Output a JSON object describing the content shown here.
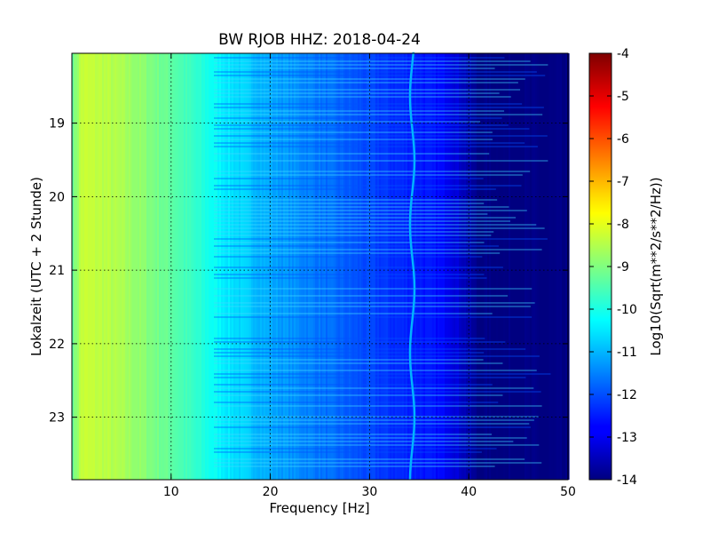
{
  "chart_data": {
    "type": "heatmap",
    "title": "BW RJOB HHZ: 2018-04-24",
    "xlabel": "Frequency [Hz]",
    "ylabel": "Lokalzeit (UTC + 2 Stunde)",
    "xlim": [
      0,
      50
    ],
    "ylim": [
      18.05,
      23.85
    ],
    "x_ticks": [
      "10",
      "20",
      "30",
      "40",
      "50"
    ],
    "y_ticks": [
      "19",
      "20",
      "21",
      "22",
      "23"
    ],
    "grid": true,
    "colorbar": {
      "label": "Log10(Sqrt(m**2/s**2/Hz))",
      "min": -14,
      "max": -4,
      "ticks": [
        "-4",
        "-5",
        "-6",
        "-7",
        "-8",
        "-9",
        "-10",
        "-11",
        "-12",
        "-13",
        "-14"
      ],
      "colormap": "jet"
    },
    "spectrum_profile": {
      "frequency_hz": [
        0,
        1,
        3,
        5,
        8,
        10,
        12,
        14,
        16,
        18,
        20,
        22,
        25,
        28,
        30,
        32,
        35,
        37,
        38,
        39,
        40,
        41,
        50
      ],
      "log10_amplitude": [
        -9.3,
        -8.3,
        -8.4,
        -8.6,
        -9.0,
        -9.3,
        -9.7,
        -10.1,
        -10.5,
        -10.8,
        -11.1,
        -11.3,
        -11.6,
        -11.9,
        -12.1,
        -12.3,
        -12.5,
        -12.7,
        -12.85,
        -13.2,
        -13.6,
        -14.0,
        -14.0
      ]
    },
    "line_feature": {
      "frequency_hz": 34.3,
      "log10_amplitude": -11.0
    }
  }
}
